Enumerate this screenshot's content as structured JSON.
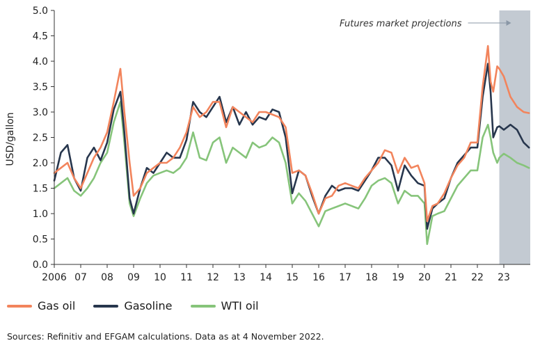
{
  "chart_data": {
    "type": "line",
    "xlabel": "",
    "ylabel": "USD/gallon",
    "ylim": [
      0.0,
      5.0
    ],
    "yticks": [
      "0.0",
      "0.5",
      "1.0",
      "1.5",
      "2.0",
      "2.5",
      "3.0",
      "3.5",
      "4.0",
      "4.5",
      "5.0"
    ],
    "xticks": [
      "2006",
      "07",
      "08",
      "09",
      "10",
      "11",
      "12",
      "13",
      "14",
      "15",
      "16",
      "17",
      "18",
      "19",
      "20",
      "21",
      "22",
      "23"
    ],
    "xlim": [
      2006.0,
      2024.0
    ],
    "projection": {
      "start": 2022.83,
      "end": 2024.0,
      "label": "Futures market projections",
      "color": "#c3cad2"
    },
    "legend_position": "bottom-left",
    "series": [
      {
        "name": "Gas oil",
        "color": "#f2845c",
        "x": [
          2006.0,
          2006.25,
          2006.5,
          2006.75,
          2007.0,
          2007.25,
          2007.5,
          2007.75,
          2008.0,
          2008.25,
          2008.5,
          2008.65,
          2008.85,
          2009.0,
          2009.25,
          2009.5,
          2009.75,
          2010.0,
          2010.25,
          2010.5,
          2010.75,
          2011.0,
          2011.25,
          2011.5,
          2011.75,
          2012.0,
          2012.25,
          2012.5,
          2012.75,
          2013.0,
          2013.25,
          2013.5,
          2013.75,
          2014.0,
          2014.25,
          2014.5,
          2014.75,
          2015.0,
          2015.25,
          2015.5,
          2015.75,
          2016.0,
          2016.25,
          2016.5,
          2016.75,
          2017.0,
          2017.25,
          2017.5,
          2017.75,
          2018.0,
          2018.25,
          2018.5,
          2018.75,
          2019.0,
          2019.25,
          2019.5,
          2019.75,
          2020.0,
          2020.1,
          2020.3,
          2020.5,
          2020.75,
          2021.0,
          2021.25,
          2021.5,
          2021.75,
          2022.0,
          2022.2,
          2022.4,
          2022.5,
          2022.6,
          2022.75,
          2022.83,
          2023.0,
          2023.25,
          2023.5,
          2023.75,
          2023.95
        ],
        "values": [
          1.8,
          1.9,
          2.0,
          1.7,
          1.5,
          1.8,
          2.1,
          2.3,
          2.6,
          3.2,
          3.85,
          3.0,
          2.0,
          1.35,
          1.5,
          1.8,
          1.9,
          2.0,
          2.0,
          2.1,
          2.3,
          2.6,
          3.1,
          2.9,
          3.0,
          3.2,
          3.2,
          2.7,
          3.1,
          3.0,
          2.9,
          2.8,
          3.0,
          3.0,
          2.95,
          2.9,
          2.7,
          1.8,
          1.85,
          1.75,
          1.4,
          1.0,
          1.3,
          1.35,
          1.55,
          1.6,
          1.55,
          1.5,
          1.7,
          1.85,
          2.0,
          2.25,
          2.2,
          1.8,
          2.1,
          1.9,
          1.95,
          1.6,
          0.85,
          1.15,
          1.2,
          1.4,
          1.7,
          1.95,
          2.1,
          2.4,
          2.4,
          3.5,
          4.3,
          3.6,
          3.4,
          3.9,
          3.85,
          3.7,
          3.3,
          3.1,
          3.0,
          2.98
        ]
      },
      {
        "name": "Gasoline",
        "color": "#27364d",
        "x": [
          2006.0,
          2006.25,
          2006.5,
          2006.75,
          2007.0,
          2007.25,
          2007.5,
          2007.75,
          2008.0,
          2008.25,
          2008.5,
          2008.65,
          2008.85,
          2009.0,
          2009.25,
          2009.5,
          2009.75,
          2010.0,
          2010.25,
          2010.5,
          2010.75,
          2011.0,
          2011.25,
          2011.5,
          2011.75,
          2012.0,
          2012.25,
          2012.5,
          2012.75,
          2013.0,
          2013.25,
          2013.5,
          2013.75,
          2014.0,
          2014.25,
          2014.5,
          2014.75,
          2015.0,
          2015.25,
          2015.5,
          2015.75,
          2016.0,
          2016.25,
          2016.5,
          2016.75,
          2017.0,
          2017.25,
          2017.5,
          2017.75,
          2018.0,
          2018.25,
          2018.5,
          2018.75,
          2019.0,
          2019.25,
          2019.5,
          2019.75,
          2020.0,
          2020.1,
          2020.3,
          2020.5,
          2020.75,
          2021.0,
          2021.25,
          2021.5,
          2021.75,
          2022.0,
          2022.2,
          2022.4,
          2022.5,
          2022.6,
          2022.75,
          2022.83,
          2023.0,
          2023.25,
          2023.5,
          2023.75,
          2023.95
        ],
        "values": [
          1.65,
          2.2,
          2.35,
          1.7,
          1.45,
          2.1,
          2.3,
          2.05,
          2.4,
          3.05,
          3.4,
          2.6,
          1.3,
          1.0,
          1.5,
          1.9,
          1.8,
          2.0,
          2.2,
          2.1,
          2.1,
          2.45,
          3.2,
          3.0,
          2.9,
          3.1,
          3.3,
          2.8,
          3.1,
          2.75,
          3.0,
          2.75,
          2.9,
          2.85,
          3.05,
          3.0,
          2.5,
          1.4,
          1.85,
          1.75,
          1.35,
          1.0,
          1.35,
          1.55,
          1.45,
          1.5,
          1.5,
          1.45,
          1.65,
          1.85,
          2.1,
          2.1,
          1.95,
          1.45,
          1.95,
          1.75,
          1.6,
          1.55,
          0.7,
          1.1,
          1.2,
          1.3,
          1.7,
          2.0,
          2.15,
          2.3,
          2.3,
          3.3,
          3.95,
          3.4,
          2.5,
          2.7,
          2.72,
          2.65,
          2.75,
          2.65,
          2.4,
          2.3
        ]
      },
      {
        "name": "WTI oil",
        "color": "#86c47a",
        "x": [
          2006.0,
          2006.25,
          2006.5,
          2006.75,
          2007.0,
          2007.25,
          2007.5,
          2007.75,
          2008.0,
          2008.25,
          2008.5,
          2008.65,
          2008.85,
          2009.0,
          2009.25,
          2009.5,
          2009.75,
          2010.0,
          2010.25,
          2010.5,
          2010.75,
          2011.0,
          2011.25,
          2011.5,
          2011.75,
          2012.0,
          2012.25,
          2012.5,
          2012.75,
          2013.0,
          2013.25,
          2013.5,
          2013.75,
          2014.0,
          2014.25,
          2014.5,
          2014.75,
          2015.0,
          2015.25,
          2015.5,
          2015.75,
          2016.0,
          2016.25,
          2016.5,
          2016.75,
          2017.0,
          2017.25,
          2017.5,
          2017.75,
          2018.0,
          2018.25,
          2018.5,
          2018.75,
          2019.0,
          2019.25,
          2019.5,
          2019.75,
          2020.0,
          2020.1,
          2020.3,
          2020.5,
          2020.75,
          2021.0,
          2021.25,
          2021.5,
          2021.75,
          2022.0,
          2022.2,
          2022.4,
          2022.5,
          2022.6,
          2022.75,
          2022.83,
          2023.0,
          2023.25,
          2023.5,
          2023.75,
          2023.95
        ],
        "values": [
          1.5,
          1.6,
          1.7,
          1.45,
          1.35,
          1.5,
          1.7,
          2.0,
          2.2,
          2.8,
          3.2,
          2.4,
          1.2,
          0.95,
          1.3,
          1.6,
          1.75,
          1.8,
          1.85,
          1.8,
          1.9,
          2.1,
          2.6,
          2.1,
          2.05,
          2.4,
          2.5,
          2.0,
          2.3,
          2.2,
          2.1,
          2.4,
          2.3,
          2.35,
          2.5,
          2.4,
          2.0,
          1.2,
          1.4,
          1.25,
          1.0,
          0.75,
          1.05,
          1.1,
          1.15,
          1.2,
          1.15,
          1.1,
          1.3,
          1.55,
          1.65,
          1.7,
          1.6,
          1.2,
          1.45,
          1.35,
          1.35,
          1.2,
          0.4,
          0.95,
          1.0,
          1.05,
          1.3,
          1.55,
          1.7,
          1.85,
          1.85,
          2.5,
          2.75,
          2.5,
          2.2,
          2.0,
          2.1,
          2.18,
          2.1,
          2.0,
          1.95,
          1.9
        ]
      }
    ]
  },
  "source_note": "Sources: Refinitiv and EFGAM calculations. Data as at 4 November 2022."
}
